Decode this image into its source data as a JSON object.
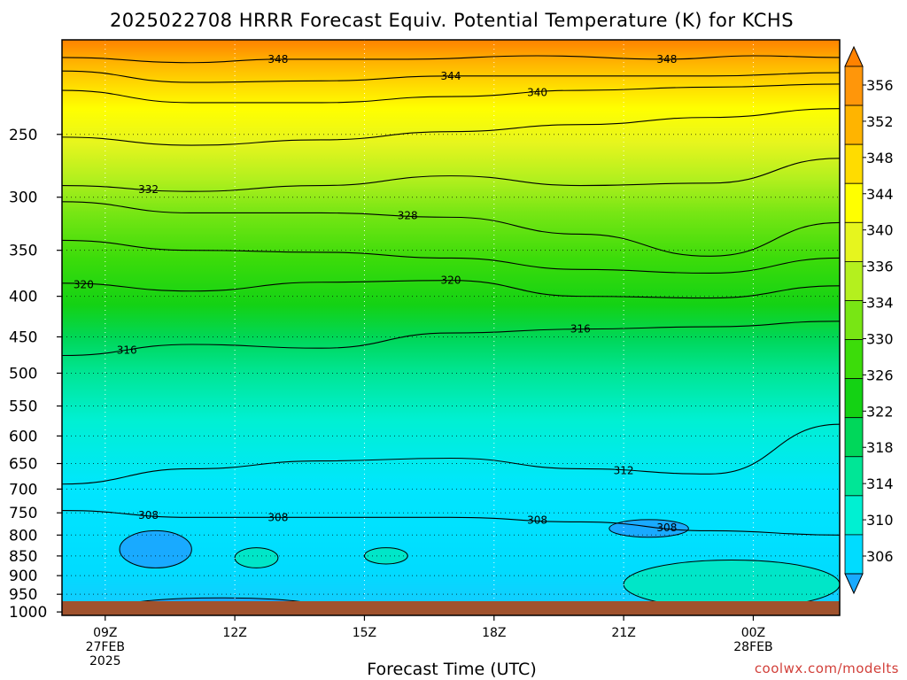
{
  "chart_data": {
    "type": "heatmap",
    "title": "2025022708 HRRR Forecast Equiv. Potential Temperature (K) for KCHS",
    "xlabel": "Forecast Time (UTC)",
    "ylabel": "",
    "y_scale": "log",
    "y_inverted": true,
    "y_range": [
      1010,
      190
    ],
    "y_ticks": [
      250,
      300,
      350,
      400,
      450,
      500,
      550,
      600,
      650,
      700,
      750,
      800,
      850,
      900,
      950,
      1000
    ],
    "y_tick_labels": [
      "250",
      "300",
      "350",
      "400",
      "450",
      "500",
      "550",
      "600",
      "650",
      "700",
      "750",
      "800",
      "850",
      "900",
      "950",
      "1000"
    ],
    "x_range": [
      "2025-02-27T08:00Z",
      "2025-02-28T02:00Z"
    ],
    "x_ticks": [
      {
        "time": "2025-02-27T09:00Z",
        "lines": [
          "09Z",
          "27FEB",
          "2025"
        ]
      },
      {
        "time": "2025-02-27T12:00Z",
        "lines": [
          "12Z"
        ]
      },
      {
        "time": "2025-02-27T15:00Z",
        "lines": [
          "15Z"
        ]
      },
      {
        "time": "2025-02-27T18:00Z",
        "lines": [
          "18Z"
        ]
      },
      {
        "time": "2025-02-27T21:00Z",
        "lines": [
          "21Z"
        ]
      },
      {
        "time": "2025-02-28T00:00Z",
        "lines": [
          "00Z",
          "28FEB"
        ]
      }
    ],
    "grid": "dotted",
    "colorbar": {
      "placement": "right",
      "levels": [
        306,
        310,
        314,
        318,
        322,
        326,
        330,
        334,
        336,
        340,
        344,
        348,
        352,
        356
      ],
      "labels": [
        "306",
        "310",
        "314",
        "318",
        "322",
        "326",
        "330",
        "334",
        "336",
        "340",
        "344",
        "348",
        "352",
        "356"
      ],
      "colors": [
        "#19aaff",
        "#00dcff",
        "#00f0d2",
        "#00e696",
        "#00d75a",
        "#14d214",
        "#3cdc0a",
        "#78e614",
        "#b4f01e",
        "#e6f51e",
        "#ffff00",
        "#ffdc00",
        "#ffb400",
        "#ff960a",
        "#ff8200"
      ]
    },
    "series": [
      {
        "level_K": 348,
        "labels_at": [
          "2025-02-27T13:00Z",
          "2025-02-27T22:00Z"
        ],
        "pressure": [
          {
            "t": "2025-02-27T08:00Z",
            "p": 200
          },
          {
            "t": "2025-02-27T11:00Z",
            "p": 203
          },
          {
            "t": "2025-02-27T13:00Z",
            "p": 201
          },
          {
            "t": "2025-02-27T16:00Z",
            "p": 201
          },
          {
            "t": "2025-02-27T19:00Z",
            "p": 199
          },
          {
            "t": "2025-02-27T22:00Z",
            "p": 201
          },
          {
            "t": "2025-02-28T00:00Z",
            "p": 199
          },
          {
            "t": "2025-02-28T02:00Z",
            "p": 200
          }
        ]
      },
      {
        "level_K": 344,
        "labels_at": [
          "2025-02-27T17:00Z"
        ],
        "pressure": [
          {
            "t": "2025-02-27T08:00Z",
            "p": 208
          },
          {
            "t": "2025-02-27T11:00Z",
            "p": 215
          },
          {
            "t": "2025-02-27T14:00Z",
            "p": 214
          },
          {
            "t": "2025-02-27T17:00Z",
            "p": 211
          },
          {
            "t": "2025-02-27T20:00Z",
            "p": 211
          },
          {
            "t": "2025-02-27T23:00Z",
            "p": 211
          },
          {
            "t": "2025-02-28T02:00Z",
            "p": 209
          }
        ]
      },
      {
        "level_K": 340,
        "labels_at": [
          "2025-02-27T19:00Z"
        ],
        "pressure": [
          {
            "t": "2025-02-27T08:00Z",
            "p": 220
          },
          {
            "t": "2025-02-27T11:00Z",
            "p": 228
          },
          {
            "t": "2025-02-27T14:00Z",
            "p": 228
          },
          {
            "t": "2025-02-27T17:00Z",
            "p": 224
          },
          {
            "t": "2025-02-27T20:00Z",
            "p": 220
          },
          {
            "t": "2025-02-27T23:00Z",
            "p": 218
          },
          {
            "t": "2025-02-28T02:00Z",
            "p": 216
          }
        ]
      },
      {
        "level_K": 336,
        "labels_at": [],
        "pressure": [
          {
            "t": "2025-02-27T08:00Z",
            "p": 252
          },
          {
            "t": "2025-02-27T11:00Z",
            "p": 258
          },
          {
            "t": "2025-02-27T14:00Z",
            "p": 254
          },
          {
            "t": "2025-02-27T17:00Z",
            "p": 248
          },
          {
            "t": "2025-02-27T20:00Z",
            "p": 243
          },
          {
            "t": "2025-02-27T23:00Z",
            "p": 238
          },
          {
            "t": "2025-02-28T02:00Z",
            "p": 232
          }
        ]
      },
      {
        "level_K": 332,
        "labels_at": [
          "2025-02-27T10:00Z"
        ],
        "pressure": [
          {
            "t": "2025-02-27T08:00Z",
            "p": 290
          },
          {
            "t": "2025-02-27T11:00Z",
            "p": 295
          },
          {
            "t": "2025-02-27T14:00Z",
            "p": 290
          },
          {
            "t": "2025-02-27T17:00Z",
            "p": 282
          },
          {
            "t": "2025-02-27T20:00Z",
            "p": 290
          },
          {
            "t": "2025-02-27T23:00Z",
            "p": 288
          },
          {
            "t": "2025-02-28T02:00Z",
            "p": 268
          }
        ]
      },
      {
        "level_K": 328,
        "labels_at": [
          "2025-02-27T16:00Z"
        ],
        "pressure": [
          {
            "t": "2025-02-27T08:00Z",
            "p": 304
          },
          {
            "t": "2025-02-27T11:00Z",
            "p": 314
          },
          {
            "t": "2025-02-27T14:00Z",
            "p": 314
          },
          {
            "t": "2025-02-27T17:00Z",
            "p": 318
          },
          {
            "t": "2025-02-27T20:00Z",
            "p": 334
          },
          {
            "t": "2025-02-27T23:00Z",
            "p": 356
          },
          {
            "t": "2025-02-28T02:00Z",
            "p": 323
          }
        ]
      },
      {
        "level_K": 324,
        "labels_at": [],
        "pressure": [
          {
            "t": "2025-02-27T08:00Z",
            "p": 340
          },
          {
            "t": "2025-02-27T11:00Z",
            "p": 350
          },
          {
            "t": "2025-02-27T14:00Z",
            "p": 352
          },
          {
            "t": "2025-02-27T17:00Z",
            "p": 358
          },
          {
            "t": "2025-02-27T20:00Z",
            "p": 370
          },
          {
            "t": "2025-02-27T23:00Z",
            "p": 374
          },
          {
            "t": "2025-02-28T02:00Z",
            "p": 358
          }
        ]
      },
      {
        "level_K": 320,
        "labels_at": [
          "2025-02-27T08:30Z",
          "2025-02-27T17:00Z"
        ],
        "pressure": [
          {
            "t": "2025-02-27T08:00Z",
            "p": 385
          },
          {
            "t": "2025-02-27T11:00Z",
            "p": 394
          },
          {
            "t": "2025-02-27T14:00Z",
            "p": 384
          },
          {
            "t": "2025-02-27T17:00Z",
            "p": 382
          },
          {
            "t": "2025-02-27T20:00Z",
            "p": 400
          },
          {
            "t": "2025-02-27T23:00Z",
            "p": 402
          },
          {
            "t": "2025-02-28T02:00Z",
            "p": 388
          }
        ]
      },
      {
        "level_K": 316,
        "labels_at": [
          "2025-02-27T09:30Z",
          "2025-02-27T20:00Z"
        ],
        "pressure": [
          {
            "t": "2025-02-27T08:00Z",
            "p": 475
          },
          {
            "t": "2025-02-27T11:00Z",
            "p": 460
          },
          {
            "t": "2025-02-27T14:00Z",
            "p": 465
          },
          {
            "t": "2025-02-27T17:00Z",
            "p": 445
          },
          {
            "t": "2025-02-27T20:00Z",
            "p": 440
          },
          {
            "t": "2025-02-27T23:00Z",
            "p": 437
          },
          {
            "t": "2025-02-28T02:00Z",
            "p": 430
          }
        ]
      },
      {
        "level_K": 312,
        "labels_at": [
          "2025-02-27T21:00Z"
        ],
        "pressure": [
          {
            "t": "2025-02-27T08:00Z",
            "p": 690
          },
          {
            "t": "2025-02-27T11:00Z",
            "p": 660
          },
          {
            "t": "2025-02-27T14:00Z",
            "p": 645
          },
          {
            "t": "2025-02-27T17:00Z",
            "p": 640
          },
          {
            "t": "2025-02-27T20:00Z",
            "p": 660
          },
          {
            "t": "2025-02-27T23:00Z",
            "p": 670
          },
          {
            "t": "2025-02-28T02:00Z",
            "p": 580
          }
        ]
      },
      {
        "level_K": 308,
        "labels_at": [
          "2025-02-27T10:00Z",
          "2025-02-27T19:00Z",
          "2025-02-27T22:00Z",
          "2025-02-27T13:00Z"
        ],
        "pressure": [
          {
            "t": "2025-02-27T08:00Z",
            "p": 745
          },
          {
            "t": "2025-02-27T11:00Z",
            "p": 760
          },
          {
            "t": "2025-02-27T14:00Z",
            "p": 760
          },
          {
            "t": "2025-02-27T17:00Z",
            "p": 760
          },
          {
            "t": "2025-02-27T20:00Z",
            "p": 770
          },
          {
            "t": "2025-02-27T23:00Z",
            "p": 790
          },
          {
            "t": "2025-02-28T02:00Z",
            "p": 800
          }
        ]
      }
    ],
    "annotations": [
      "348",
      "348",
      "344",
      "340",
      "332",
      "328",
      "320",
      "320",
      "316",
      "316",
      "312",
      "308",
      "308",
      "308",
      "308"
    ]
  },
  "credit": "coolwx.com/modelts"
}
